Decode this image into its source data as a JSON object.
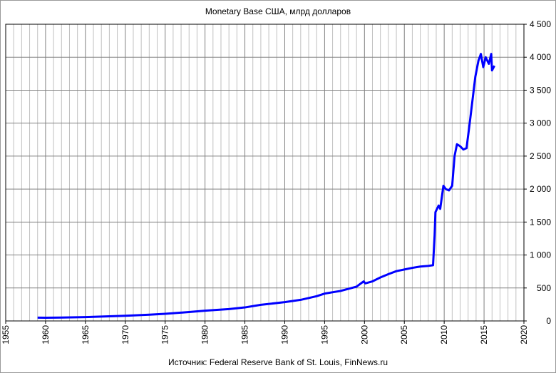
{
  "chart_data": {
    "type": "line",
    "title": "Monetary Base США,  млрд долларов",
    "source": "Источник:  Federal  Reserve  Bank of St. Louis, FinNews.ru",
    "x": [
      1959,
      1960,
      1962,
      1965,
      1968,
      1970,
      1973,
      1975,
      1978,
      1980,
      1983,
      1985,
      1987,
      1990,
      1992,
      1994,
      1995,
      1997,
      1999,
      1999.9,
      2000.1,
      2001,
      2002,
      2003,
      2004,
      2005,
      2006,
      2007,
      2008,
      2008.6,
      2008.8,
      2008.9,
      2009.1,
      2009.3,
      2009.5,
      2009.9,
      2010.2,
      2010.6,
      2011.0,
      2011.3,
      2011.6,
      2012.0,
      2012.4,
      2012.8,
      2013.2,
      2013.6,
      2013.9,
      2014.3,
      2014.6,
      2014.9,
      2015.2,
      2015.6,
      2015.9,
      2016.0,
      2016.3
    ],
    "series": [
      {
        "name": "Monetary Base",
        "color": "#0000ff",
        "values": [
          50,
          48,
          52,
          58,
          70,
          78,
          95,
          108,
          135,
          155,
          180,
          205,
          245,
          285,
          320,
          375,
          415,
          455,
          520,
          600,
          570,
          600,
          660,
          710,
          755,
          780,
          805,
          825,
          835,
          845,
          1300,
          1650,
          1700,
          1750,
          1700,
          2050,
          2000,
          1980,
          2050,
          2500,
          2680,
          2650,
          2600,
          2620,
          3000,
          3400,
          3700,
          3950,
          4050,
          3850,
          4000,
          3900,
          4050,
          3800,
          3870
        ]
      }
    ],
    "xlim": [
      1955,
      2020
    ],
    "xticks": [
      1955,
      1960,
      1965,
      1970,
      1975,
      1980,
      1985,
      1990,
      1995,
      2000,
      2005,
      2010,
      2015,
      2020
    ],
    "xminorticks": [
      1956,
      1957,
      1958,
      1959,
      1961,
      1962,
      1963,
      1964,
      1966,
      1967,
      1968,
      1969,
      1971,
      1972,
      1973,
      1974,
      1976,
      1977,
      1978,
      1979,
      1981,
      1982,
      1983,
      1984,
      1986,
      1987,
      1988,
      1989,
      1991,
      1992,
      1993,
      1994,
      1996,
      1997,
      1998,
      1999,
      2001,
      2002,
      2003,
      2004,
      2006,
      2007,
      2008,
      2009,
      2011,
      2012,
      2013,
      2014,
      2016,
      2017,
      2018,
      2019
    ],
    "ylim": [
      0,
      4500
    ],
    "yticks": [
      0,
      500,
      {
        "value": 1000,
        "label": "1 000"
      },
      {
        "value": 1500,
        "label": "1 500"
      },
      {
        "value": 2000,
        "label": "2 000"
      },
      {
        "value": 2500,
        "label": "2 500"
      },
      {
        "value": 3000,
        "label": "3 000"
      },
      {
        "value": 3500,
        "label": "3 500"
      },
      {
        "value": 4000,
        "label": "4 000"
      },
      {
        "value": 4500,
        "label": "4 500"
      }
    ],
    "grid": true
  }
}
